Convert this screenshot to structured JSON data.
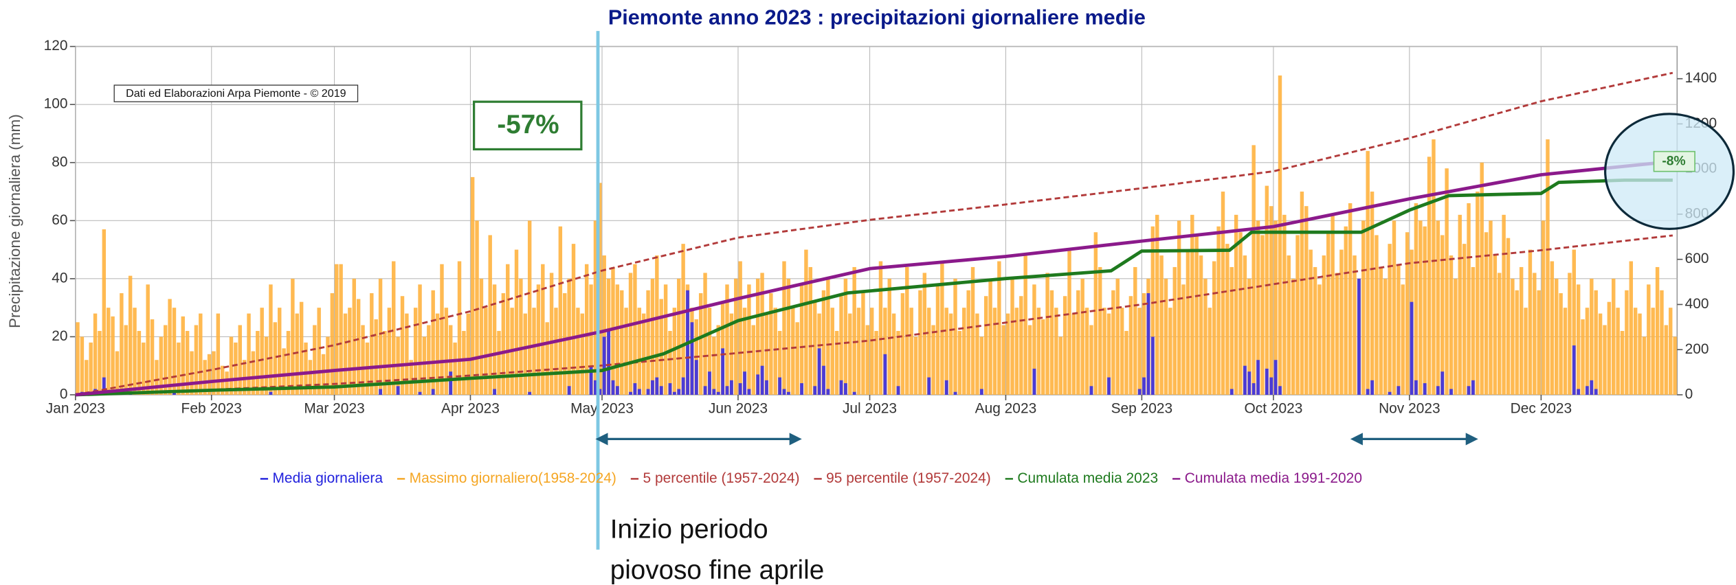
{
  "chart_data": {
    "type": "bar",
    "title": "Piemonte anno 2023 : precipitazioni giornaliere medie",
    "y_label": "Precipitazione giornaliera (mm)",
    "credit": "Dati ed Elaborazioni Arpa Piemonte - © 2019",
    "annotation_left": "-57%",
    "annotation_right": "-8%",
    "note_lines": [
      "Inizio periodo",
      "piovoso fine aprile"
    ],
    "grid": true,
    "xlim": [
      0,
      365
    ],
    "xticks": [
      {
        "value": 0,
        "label": "Jan 2023"
      },
      {
        "value": 31,
        "label": "Feb 2023"
      },
      {
        "value": 59,
        "label": "Mar 2023"
      },
      {
        "value": 90,
        "label": "Apr 2023"
      },
      {
        "value": 120,
        "label": "May 2023"
      },
      {
        "value": 151,
        "label": "Jun 2023"
      },
      {
        "value": 181,
        "label": "Jul 2023"
      },
      {
        "value": 212,
        "label": "Aug 2023"
      },
      {
        "value": 243,
        "label": "Sep 2023"
      },
      {
        "value": 273,
        "label": "Oct 2023"
      },
      {
        "value": 304,
        "label": "Nov 2023"
      },
      {
        "value": 334,
        "label": "Dec 2023"
      }
    ],
    "ylim": [
      0,
      120
    ],
    "yticks": [
      0,
      20,
      40,
      60,
      80,
      100,
      120
    ],
    "y2lim": [
      0,
      1543
    ],
    "y2ticks": [
      0,
      200,
      400,
      600,
      800,
      1000,
      1200,
      1400
    ],
    "x": [
      0,
      1,
      2,
      3,
      4,
      5,
      6,
      7,
      8,
      9,
      10,
      11,
      12,
      13,
      14,
      15,
      16,
      17,
      18,
      19,
      20,
      21,
      22,
      23,
      24,
      25,
      26,
      27,
      28,
      29,
      30,
      31,
      32,
      33,
      34,
      35,
      36,
      37,
      38,
      39,
      40,
      41,
      42,
      43,
      44,
      45,
      46,
      47,
      48,
      49,
      50,
      51,
      52,
      53,
      54,
      55,
      56,
      57,
      58,
      59,
      60,
      61,
      62,
      63,
      64,
      65,
      66,
      67,
      68,
      69,
      70,
      71,
      72,
      73,
      74,
      75,
      76,
      77,
      78,
      79,
      80,
      81,
      82,
      83,
      84,
      85,
      86,
      87,
      88,
      89,
      90,
      91,
      92,
      93,
      94,
      95,
      96,
      97,
      98,
      99,
      100,
      101,
      102,
      103,
      104,
      105,
      106,
      107,
      108,
      109,
      110,
      111,
      112,
      113,
      114,
      115,
      116,
      117,
      118,
      119,
      120,
      121,
      122,
      123,
      124,
      125,
      126,
      127,
      128,
      129,
      130,
      131,
      132,
      133,
      134,
      135,
      136,
      137,
      138,
      139,
      140,
      141,
      142,
      143,
      144,
      145,
      146,
      147,
      148,
      149,
      150,
      151,
      152,
      153,
      154,
      155,
      156,
      157,
      158,
      159,
      160,
      161,
      162,
      163,
      164,
      165,
      166,
      167,
      168,
      169,
      170,
      171,
      172,
      173,
      174,
      175,
      176,
      177,
      178,
      179,
      180,
      181,
      182,
      183,
      184,
      185,
      186,
      187,
      188,
      189,
      190,
      191,
      192,
      193,
      194,
      195,
      196,
      197,
      198,
      199,
      200,
      201,
      202,
      203,
      204,
      205,
      206,
      207,
      208,
      209,
      210,
      211,
      212,
      213,
      214,
      215,
      216,
      217,
      218,
      219,
      220,
      221,
      222,
      223,
      224,
      225,
      226,
      227,
      228,
      229,
      230,
      231,
      232,
      233,
      234,
      235,
      236,
      237,
      238,
      239,
      240,
      241,
      242,
      243,
      244,
      245,
      246,
      247,
      248,
      249,
      250,
      251,
      252,
      253,
      254,
      255,
      256,
      257,
      258,
      259,
      260,
      261,
      262,
      263,
      264,
      265,
      266,
      267,
      268,
      269,
      270,
      271,
      272,
      273,
      274,
      275,
      276,
      277,
      278,
      279,
      280,
      281,
      282,
      283,
      284,
      285,
      286,
      287,
      288,
      289,
      290,
      291,
      292,
      293,
      294,
      295,
      296,
      297,
      298,
      299,
      300,
      301,
      302,
      303,
      304,
      305,
      306,
      307,
      308,
      309,
      310,
      311,
      312,
      313,
      314,
      315,
      316,
      317,
      318,
      319,
      320,
      321,
      322,
      323,
      324,
      325,
      326,
      327,
      328,
      329,
      330,
      331,
      332,
      333,
      334,
      335,
      336,
      337,
      338,
      339,
      340,
      341,
      342,
      343,
      344,
      345,
      346,
      347,
      348,
      349,
      350,
      351,
      352,
      353,
      354,
      355,
      356,
      357,
      358,
      359,
      360,
      361,
      362,
      363,
      364
    ],
    "series": [
      {
        "name": "Massimo giornaliero(1958-2024)",
        "color": "#ffb33f",
        "values": [
          25,
          20,
          12,
          18,
          28,
          22,
          57,
          30,
          27,
          15,
          35,
          24,
          41,
          30,
          22,
          18,
          38,
          26,
          12,
          20,
          24,
          33,
          30,
          18,
          27,
          22,
          15,
          24,
          28,
          12,
          14,
          15,
          28,
          10,
          8,
          20,
          18,
          24,
          12,
          28,
          15,
          22,
          30,
          20,
          38,
          25,
          30,
          16,
          22,
          40,
          28,
          32,
          18,
          12,
          24,
          30,
          14,
          20,
          35,
          45,
          45,
          28,
          30,
          40,
          33,
          24,
          18,
          35,
          26,
          40,
          22,
          30,
          46,
          20,
          34,
          28,
          12,
          30,
          38,
          20,
          24,
          36,
          28,
          45,
          30,
          24,
          18,
          46,
          22,
          28,
          75,
          60,
          40,
          30,
          55,
          38,
          22,
          35,
          45,
          30,
          50,
          40,
          28,
          60,
          30,
          38,
          45,
          25,
          42,
          30,
          58,
          35,
          40,
          52,
          30,
          28,
          45,
          38,
          60,
          73,
          48,
          40,
          44,
          38,
          36,
          30,
          42,
          45,
          30,
          28,
          36,
          40,
          48,
          33,
          38,
          22,
          30,
          40,
          52,
          38,
          30,
          26,
          35,
          42,
          30,
          20,
          24,
          32,
          38,
          28,
          40,
          46,
          30,
          38,
          24,
          40,
          42,
          28,
          35,
          30,
          22,
          46,
          40,
          30,
          25,
          38,
          50,
          44,
          32,
          28,
          36,
          40,
          30,
          22,
          34,
          40,
          28,
          44,
          30,
          36,
          24,
          30,
          22,
          46,
          30,
          40,
          28,
          22,
          35,
          44,
          30,
          20,
          36,
          42,
          30,
          24,
          38,
          46,
          30,
          28,
          40,
          22,
          30,
          36,
          44,
          28,
          20,
          34,
          40,
          30,
          46,
          24,
          28,
          40,
          30,
          34,
          48,
          24,
          38,
          30,
          26,
          42,
          36,
          30,
          20,
          34,
          50,
          28,
          36,
          40,
          30,
          24,
          56,
          44,
          30,
          28,
          36,
          40,
          30,
          22,
          34,
          44,
          30,
          35,
          40,
          58,
          62,
          48,
          40,
          30,
          44,
          60,
          38,
          50,
          62,
          55,
          48,
          40,
          30,
          46,
          58,
          70,
          52,
          44,
          62,
          56,
          48,
          40,
          86,
          60,
          55,
          72,
          65,
          60,
          110,
          62,
          48,
          40,
          55,
          70,
          65,
          50,
          44,
          38,
          48,
          56,
          62,
          42,
          50,
          58,
          66,
          48,
          40,
          60,
          84,
          70,
          55,
          44,
          40,
          52,
          60,
          45,
          38,
          56,
          50,
          66,
          60,
          58,
          82,
          88,
          60,
          55,
          78,
          48,
          40,
          62,
          52,
          66,
          44,
          70,
          80,
          56,
          60,
          48,
          42,
          62,
          54,
          40,
          36,
          44,
          30,
          50,
          42,
          36,
          60,
          88,
          46,
          40,
          35,
          30,
          42,
          50,
          38,
          26,
          30,
          40,
          36,
          28,
          24,
          32,
          40,
          30,
          22,
          36,
          46,
          30,
          28,
          20,
          38,
          30,
          44,
          36,
          24,
          30,
          20
        ]
      },
      {
        "name": "Media giornaliera",
        "color": "#4b3bd6",
        "values": [
          0,
          1,
          0,
          0,
          2,
          0,
          6,
          1,
          0,
          0,
          0,
          0,
          1,
          0,
          0,
          0,
          0,
          0,
          0,
          0,
          0,
          0,
          1,
          0,
          0,
          0,
          0,
          0,
          0,
          0,
          0,
          0,
          0,
          0,
          0,
          0,
          0,
          0,
          0,
          0,
          0,
          0,
          0,
          0,
          1,
          0,
          0,
          0,
          0,
          0,
          0,
          0,
          0,
          0,
          0,
          0,
          0,
          0,
          0,
          0,
          0,
          0,
          0,
          0,
          0,
          0,
          0,
          0,
          0,
          2,
          0,
          0,
          0,
          3,
          0,
          0,
          0,
          0,
          1,
          0,
          0,
          2,
          0,
          0,
          0,
          8,
          0,
          0,
          0,
          0,
          0,
          0,
          0,
          0,
          0,
          2,
          0,
          0,
          0,
          0,
          0,
          0,
          0,
          1,
          0,
          0,
          0,
          0,
          0,
          0,
          0,
          0,
          3,
          0,
          0,
          0,
          0,
          10,
          5,
          2,
          20,
          22,
          5,
          3,
          0,
          0,
          1,
          4,
          2,
          0,
          2,
          5,
          6,
          3,
          0,
          4,
          1,
          2,
          6,
          36,
          25,
          12,
          0,
          3,
          8,
          2,
          1,
          16,
          3,
          5,
          0,
          4,
          8,
          2,
          0,
          7,
          10,
          5,
          0,
          0,
          6,
          2,
          1,
          0,
          0,
          4,
          0,
          0,
          3,
          16,
          10,
          2,
          0,
          0,
          5,
          4,
          0,
          1,
          0,
          0,
          0,
          0,
          0,
          0,
          14,
          0,
          0,
          3,
          0,
          0,
          0,
          0,
          0,
          0,
          6,
          0,
          0,
          0,
          5,
          0,
          1,
          0,
          0,
          0,
          0,
          0,
          2,
          0,
          0,
          0,
          0,
          0,
          0,
          0,
          0,
          0,
          0,
          0,
          9,
          0,
          0,
          0,
          0,
          0,
          0,
          0,
          0,
          0,
          0,
          0,
          0,
          3,
          0,
          0,
          0,
          6,
          0,
          0,
          0,
          0,
          0,
          0,
          2,
          6,
          35,
          20,
          0,
          0,
          0,
          0,
          0,
          0,
          0,
          0,
          0,
          0,
          0,
          0,
          0,
          0,
          0,
          0,
          0,
          2,
          0,
          0,
          10,
          8,
          4,
          12,
          0,
          9,
          6,
          12,
          3,
          0,
          0,
          0,
          0,
          0,
          0,
          0,
          0,
          0,
          0,
          0,
          0,
          0,
          0,
          0,
          0,
          0,
          40,
          0,
          2,
          5,
          0,
          0,
          0,
          1,
          0,
          3,
          0,
          0,
          32,
          5,
          0,
          4,
          0,
          0,
          3,
          8,
          0,
          2,
          0,
          0,
          0,
          3,
          5,
          0,
          0,
          0,
          0,
          0,
          0,
          0,
          0,
          0,
          0,
          0,
          0,
          0,
          0,
          0,
          0,
          0,
          0,
          0,
          0,
          0,
          0,
          17,
          2,
          0,
          3,
          5,
          2,
          0,
          0,
          0,
          0,
          0,
          0,
          0,
          0,
          0,
          0,
          0,
          0,
          0,
          0,
          0,
          0,
          0,
          0
        ]
      },
      {
        "name": "5 percentile (1957-2024)",
        "color": "#b23a3a",
        "axis": "y2",
        "line": "dashed",
        "x": [
          0,
          31,
          59,
          90,
          120,
          151,
          181,
          212,
          243,
          273,
          304,
          334,
          364
        ],
        "values": [
          0,
          22,
          48,
          85,
          130,
          185,
          240,
          320,
          400,
          490,
          583,
          640,
          706
        ]
      },
      {
        "name": "95 percentile (1957-2024)",
        "color": "#b23a3a",
        "axis": "y2",
        "line": "dashed",
        "x": [
          0,
          31,
          59,
          90,
          120,
          151,
          181,
          212,
          243,
          273,
          304,
          334,
          364
        ],
        "values": [
          0,
          110,
          220,
          370,
          550,
          696,
          775,
          843,
          915,
          990,
          1137,
          1300,
          1426
        ]
      },
      {
        "name": "Cumulata media 2023",
        "color": "#1e7a1e",
        "axis": "y2",
        "x": [
          0,
          31,
          59,
          90,
          120,
          134,
          151,
          176,
          181,
          212,
          236,
          243,
          263,
          268,
          273,
          293,
          304,
          313,
          334,
          338,
          353,
          364
        ],
        "values": [
          0,
          20,
          35,
          73,
          108,
          181,
          328,
          451,
          460,
          515,
          549,
          637,
          640,
          720,
          720,
          720,
          818,
          882,
          892,
          941,
          951,
          951
        ]
      },
      {
        "name": "Cumulata media 1991-2020",
        "color": "#8b1a8b",
        "axis": "y2",
        "x": [
          0,
          31,
          59,
          90,
          120,
          151,
          181,
          212,
          243,
          273,
          304,
          334,
          364
        ],
        "values": [
          0,
          59,
          108,
          157,
          280,
          426,
          559,
          613,
          681,
          745,
          868,
          975,
          1034
        ]
      }
    ]
  }
}
